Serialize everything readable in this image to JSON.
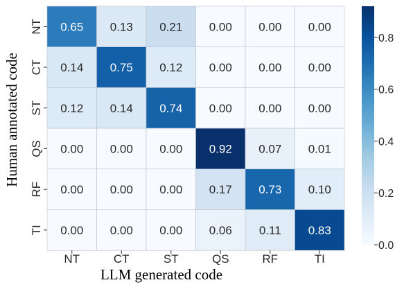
{
  "chart_data": {
    "type": "heatmap",
    "xlabel": "LLM generated code",
    "ylabel": "Human annotated code",
    "x_categories": [
      "NT",
      "CT",
      "ST",
      "QS",
      "RF",
      "TI"
    ],
    "y_categories": [
      "NT",
      "CT",
      "ST",
      "QS",
      "RF",
      "TI"
    ],
    "values": [
      [
        0.65,
        0.13,
        0.21,
        0.0,
        0.0,
        0.0
      ],
      [
        0.14,
        0.75,
        0.12,
        0.0,
        0.0,
        0.0
      ],
      [
        0.12,
        0.14,
        0.74,
        0.0,
        0.0,
        0.0
      ],
      [
        0.0,
        0.0,
        0.0,
        0.92,
        0.07,
        0.01
      ],
      [
        0.0,
        0.0,
        0.0,
        0.17,
        0.73,
        0.1
      ],
      [
        0.0,
        0.0,
        0.0,
        0.06,
        0.11,
        0.83
      ]
    ],
    "value_labels": [
      [
        "0.65",
        "0.13",
        "0.21",
        "0.00",
        "0.00",
        "0.00"
      ],
      [
        "0.14",
        "0.75",
        "0.12",
        "0.00",
        "0.00",
        "0.00"
      ],
      [
        "0.12",
        "0.14",
        "0.74",
        "0.00",
        "0.00",
        "0.00"
      ],
      [
        "0.00",
        "0.00",
        "0.00",
        "0.92",
        "0.07",
        "0.01"
      ],
      [
        "0.00",
        "0.00",
        "0.00",
        "0.17",
        "0.73",
        "0.10"
      ],
      [
        "0.00",
        "0.00",
        "0.00",
        "0.06",
        "0.11",
        "0.83"
      ]
    ],
    "colorbar": {
      "range": [
        0.0,
        0.92
      ],
      "ticks": [
        0.0,
        0.2,
        0.4,
        0.6,
        0.8
      ],
      "tick_labels": [
        "0.0",
        "0.2",
        "0.4",
        "0.6",
        "0.8"
      ],
      "colormap": "Blues"
    },
    "grid": true,
    "colors": {
      "low": "#f7fbff",
      "high": "#08306b",
      "text_dark": "#262626",
      "text_light": "#ffffff",
      "cell_border": "#ffffff"
    }
  }
}
